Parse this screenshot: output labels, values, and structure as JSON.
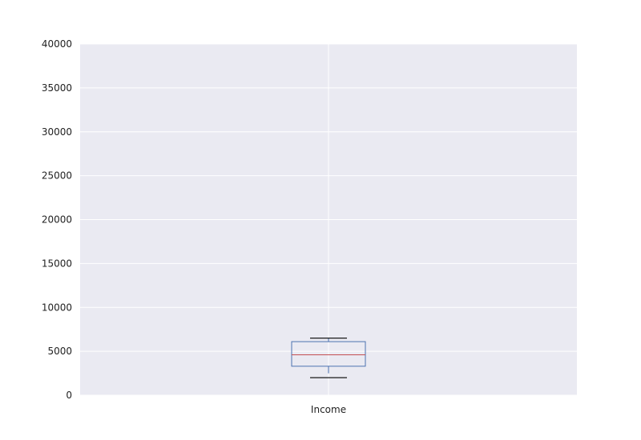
{
  "chart_data": {
    "type": "box",
    "categories": [
      "Income"
    ],
    "boxes": [
      {
        "name": "Income",
        "whisker_low": 2000,
        "q1": 3300,
        "median": 4600,
        "q3": 6100,
        "whisker_high": 6500,
        "whisker_stem_low": 2500
      }
    ],
    "ylim": [
      0,
      40000
    ],
    "yticks": [
      0,
      5000,
      10000,
      15000,
      20000,
      25000,
      30000,
      35000,
      40000
    ],
    "ytick_labels": [
      "0",
      "5000",
      "10000",
      "15000",
      "20000",
      "25000",
      "30000",
      "35000",
      "40000"
    ],
    "grid": true,
    "colors": {
      "background": "#eaeaf2",
      "grid": "#ffffff",
      "box": "#4c72b0",
      "median": "#c44e52",
      "caps": "#000000"
    }
  }
}
